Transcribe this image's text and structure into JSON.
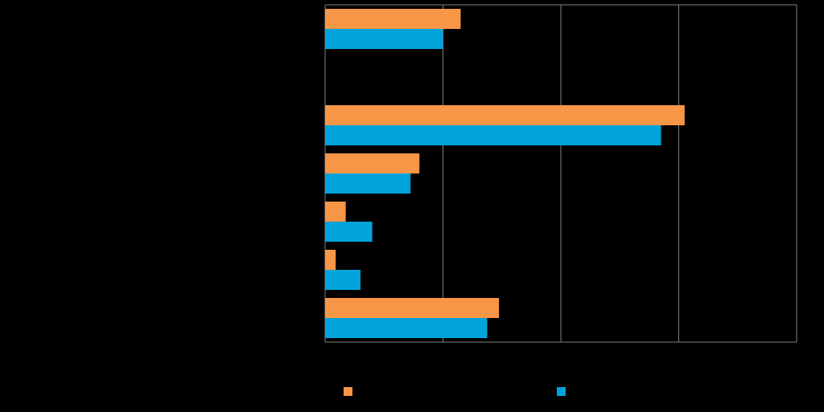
{
  "chart_data": {
    "type": "bar",
    "orientation": "horizontal",
    "title": "",
    "xlabel": "",
    "ylabel": "",
    "xlim": [
      0,
      80
    ],
    "x_ticks": [
      0,
      20,
      40,
      60,
      80
    ],
    "grid": true,
    "legend_position": "bottom",
    "categories": [
      "",
      "",
      "",
      "",
      "",
      "",
      ""
    ],
    "series": [
      {
        "name": "",
        "color": "#F79646",
        "values": [
          23,
          null,
          61,
          16,
          3.5,
          1.8,
          29.5
        ]
      },
      {
        "name": "",
        "color": "#00A3DA",
        "values": [
          20,
          null,
          57,
          14.5,
          8,
          6,
          27.5
        ]
      }
    ]
  },
  "colors": {
    "background": "#000000",
    "axis": "#808080",
    "grid": "#808080"
  }
}
